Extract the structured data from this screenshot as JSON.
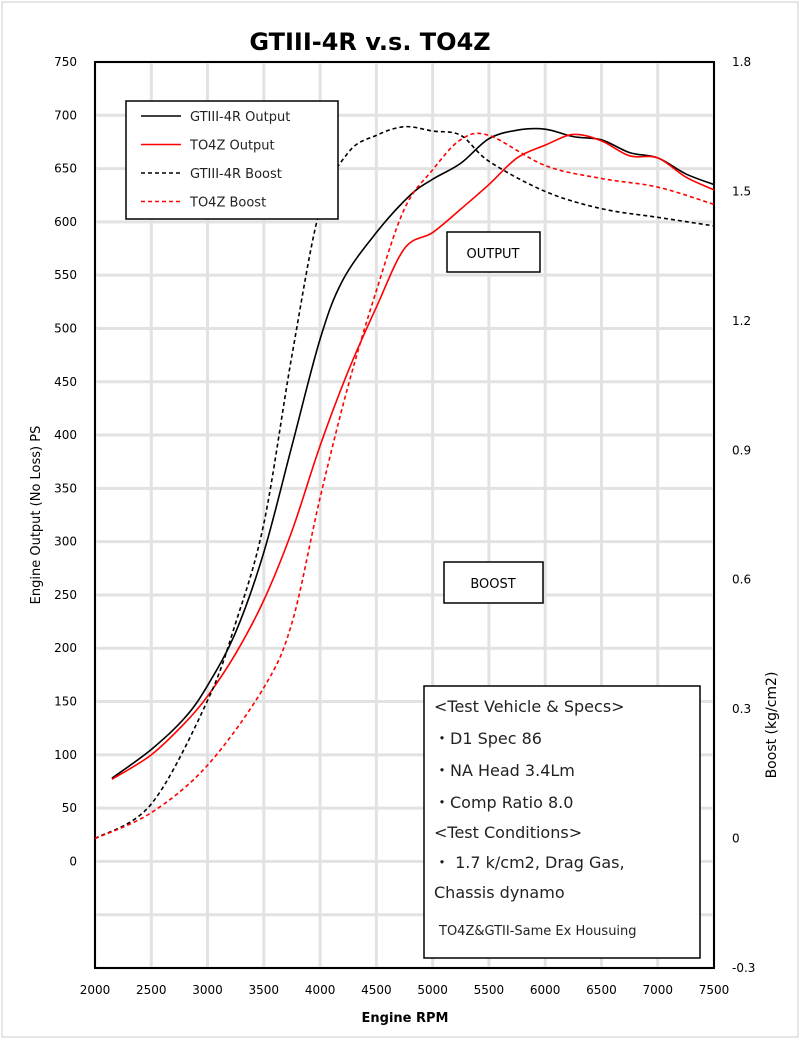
{
  "chart_data": {
    "type": "line",
    "title": "GTIII-4R v.s. TO4Z",
    "xlabel": "Engine RPM",
    "ylabel": "Engine Output (No Loss) PS",
    "y2label": "Boost (kg/cm2)",
    "xlim": [
      2000,
      7500
    ],
    "ylim": [
      -100,
      750
    ],
    "y2lim": [
      -0.3,
      1.8
    ],
    "x_ticks": [
      2000,
      2500,
      3000,
      3500,
      4000,
      4500,
      5000,
      5500,
      6000,
      6500,
      7000,
      7500
    ],
    "y_ticks": [
      0,
      50,
      100,
      150,
      200,
      250,
      300,
      350,
      400,
      450,
      500,
      550,
      600,
      650,
      700,
      750
    ],
    "y2_ticks": [
      "-0.3",
      "0",
      "0.3",
      "0.6",
      "0.9",
      "1.2",
      "1.5",
      "1.8"
    ],
    "grid": true,
    "legend_position": "top-left",
    "series": [
      {
        "name": "GTIII-4R Output",
        "axis": "left",
        "color": "#000000",
        "dash": false,
        "x": [
          2150,
          2500,
          2800,
          3000,
          3250,
          3500,
          3750,
          4000,
          4200,
          4500,
          4800,
          5000,
          5250,
          5500,
          5750,
          6000,
          6250,
          6500,
          6750,
          7000,
          7250,
          7500
        ],
        "y": [
          78,
          105,
          135,
          165,
          215,
          290,
          390,
          490,
          545,
          590,
          625,
          640,
          655,
          678,
          686,
          687,
          680,
          677,
          665,
          660,
          645,
          635
        ]
      },
      {
        "name": "TO4Z Output",
        "axis": "left",
        "color": "#ff0000",
        "dash": false,
        "x": [
          2150,
          2500,
          2800,
          3000,
          3250,
          3500,
          3750,
          4000,
          4250,
          4500,
          4750,
          5000,
          5250,
          5500,
          5750,
          6000,
          6250,
          6500,
          6750,
          7000,
          7250,
          7500
        ],
        "y": [
          77,
          100,
          130,
          155,
          195,
          245,
          310,
          390,
          460,
          520,
          575,
          590,
          612,
          635,
          660,
          672,
          682,
          676,
          662,
          660,
          642,
          630
        ]
      },
      {
        "name": "GTIII-4R Boost",
        "axis": "right",
        "color": "#000000",
        "dash": true,
        "x": [
          2000,
          2500,
          3000,
          3250,
          3500,
          3750,
          4000,
          4250,
          4500,
          4750,
          5000,
          5250,
          5500,
          6000,
          6500,
          7000,
          7500
        ],
        "y": [
          0,
          0.08,
          0.32,
          0.5,
          0.73,
          1.12,
          1.46,
          1.59,
          1.63,
          1.65,
          1.64,
          1.63,
          1.57,
          1.5,
          1.46,
          1.44,
          1.42
        ]
      },
      {
        "name": "TO4Z Boost",
        "axis": "right",
        "color": "#ff0000",
        "dash": true,
        "x": [
          2000,
          2500,
          3000,
          3500,
          3750,
          4000,
          4250,
          4500,
          4750,
          5000,
          5250,
          5500,
          6000,
          6500,
          7000,
          7500
        ],
        "y": [
          0,
          0.06,
          0.17,
          0.35,
          0.5,
          0.79,
          1.05,
          1.27,
          1.46,
          1.55,
          1.62,
          1.63,
          1.56,
          1.53,
          1.51,
          1.47
        ]
      }
    ],
    "annotations": {
      "output_label": "OUTPUT",
      "boost_label": "BOOST",
      "specs": [
        "<Test Vehicle & Specs>",
        "・D1 Spec 86",
        "・NA Head 3.4Lm",
        "・Comp Ratio 8.0",
        "<Test Conditions>",
        "・ 1.7 k/cm2, Drag Gas,",
        " Chassis dynamo",
        "TO4Z&GTII-Same Ex Housuing"
      ]
    }
  }
}
